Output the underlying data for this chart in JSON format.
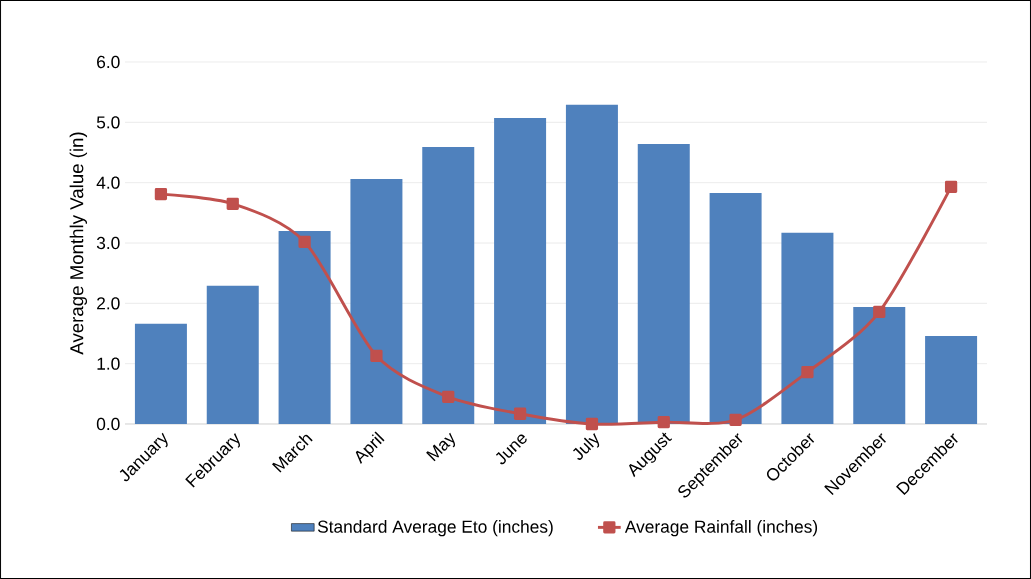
{
  "chart_data": {
    "type": "bar",
    "ylabel": "Average Monthly Value (in)",
    "categories": [
      "January",
      "February",
      "March",
      "April",
      "May",
      "June",
      "July",
      "August",
      "September",
      "October",
      "November",
      "December"
    ],
    "series": [
      {
        "name": "Standard Average Eto (inches)",
        "type": "bar",
        "color": "#4f81bd",
        "values": [
          1.66,
          2.29,
          3.2,
          4.06,
          4.59,
          5.07,
          5.29,
          4.64,
          3.83,
          3.17,
          1.94,
          1.46
        ]
      },
      {
        "name": "Average Rainfall (inches)",
        "type": "line",
        "color": "#c0504d",
        "marker": "square",
        "values": [
          3.81,
          3.65,
          3.02,
          1.13,
          0.45,
          0.17,
          0.0,
          0.03,
          0.07,
          0.86,
          1.86,
          3.93
        ]
      }
    ],
    "ylim": [
      0,
      6
    ],
    "yticks": [
      {
        "value": 0,
        "label": "0.0"
      },
      {
        "value": 1,
        "label": "1.0"
      },
      {
        "value": 2,
        "label": "2.0"
      },
      {
        "value": 3,
        "label": "3.0"
      },
      {
        "value": 4,
        "label": "4.0"
      },
      {
        "value": 5,
        "label": "5.0"
      },
      {
        "value": 6,
        "label": "6.0"
      }
    ],
    "grid": "y",
    "legend": "bottom"
  }
}
